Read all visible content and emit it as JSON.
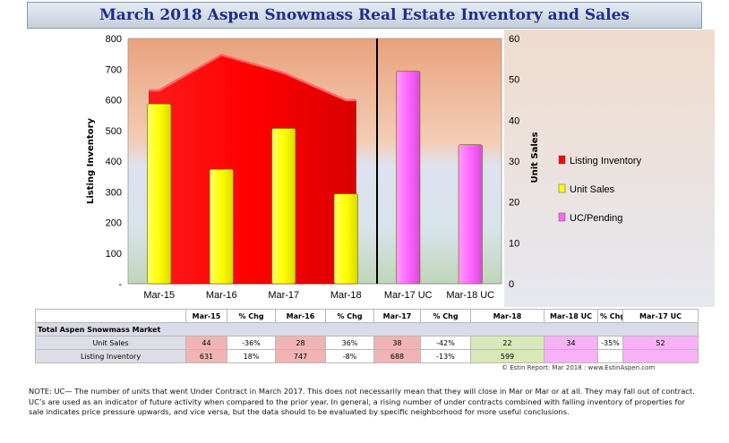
{
  "title": "March 2018 Aspen Snowmass Real Estate Inventory and Sales",
  "chart_data": {
    "type": "bar",
    "categories": [
      "Mar-15",
      "Mar-16",
      "Mar-17",
      "Mar-18",
      "Mar-17 UC",
      "Mar-18 UC"
    ],
    "series": [
      {
        "name": "Listing Inventory",
        "kind": "area",
        "axis": "left",
        "color": "#ff0000",
        "values": [
          631,
          747,
          688,
          599,
          null,
          null
        ]
      },
      {
        "name": "Unit Sales",
        "kind": "bar",
        "axis": "right",
        "color": "#ffff00",
        "values": [
          44,
          28,
          38,
          22,
          null,
          null
        ]
      },
      {
        "name": "UC/Pending",
        "kind": "bar",
        "axis": "right",
        "color": "#ff66ff",
        "values": [
          null,
          null,
          null,
          null,
          52,
          34
        ]
      }
    ],
    "ylabel": "Listing Inventory",
    "y2label": "Unit Sales",
    "ylim": [
      0,
      800
    ],
    "y2lim": [
      0,
      60
    ],
    "yticks": [
      "-",
      "100",
      "200",
      "300",
      "400",
      "500",
      "600",
      "700",
      "800"
    ],
    "y2ticks": [
      "0",
      "10",
      "20",
      "30",
      "40",
      "50",
      "60"
    ],
    "legend_position": "right"
  },
  "table": {
    "headers": [
      "Mar-15",
      "% Chg",
      "Mar-16",
      "% Chg",
      "Mar-17",
      "% Chg",
      "Mar-18",
      "Mar-18 UC",
      "% Chg",
      "Mar-17 UC"
    ],
    "section": "Total Aspen Snowmass Market",
    "rows": [
      {
        "label": "Unit Sales",
        "cells": [
          "44",
          "-36%",
          "28",
          "36%",
          "38",
          "-42%",
          "22",
          "34",
          "-35%",
          "52"
        ]
      },
      {
        "label": "Listing Inventory",
        "cells": [
          "631",
          "18%",
          "747",
          "-8%",
          "688",
          "-13%",
          "599",
          "",
          "",
          ""
        ]
      }
    ]
  },
  "source": "© Estin Report: Mar 2018 : www.EstinAspen.com",
  "note": "NOTE: UC— The number of units that went Under Contract in March 2017. This does not necessarily mean that they will close in Mar or Mar or at all. They may fall out of contract. UC’s are used as an indicator of future activity when compared to the prior year. In general, a rising number of under contracts combined with falling inventory of properties for sale indicates price pressure upwards, and vice versa, but the data should to be evaluated by specific neighborhood for more useful conclusions."
}
